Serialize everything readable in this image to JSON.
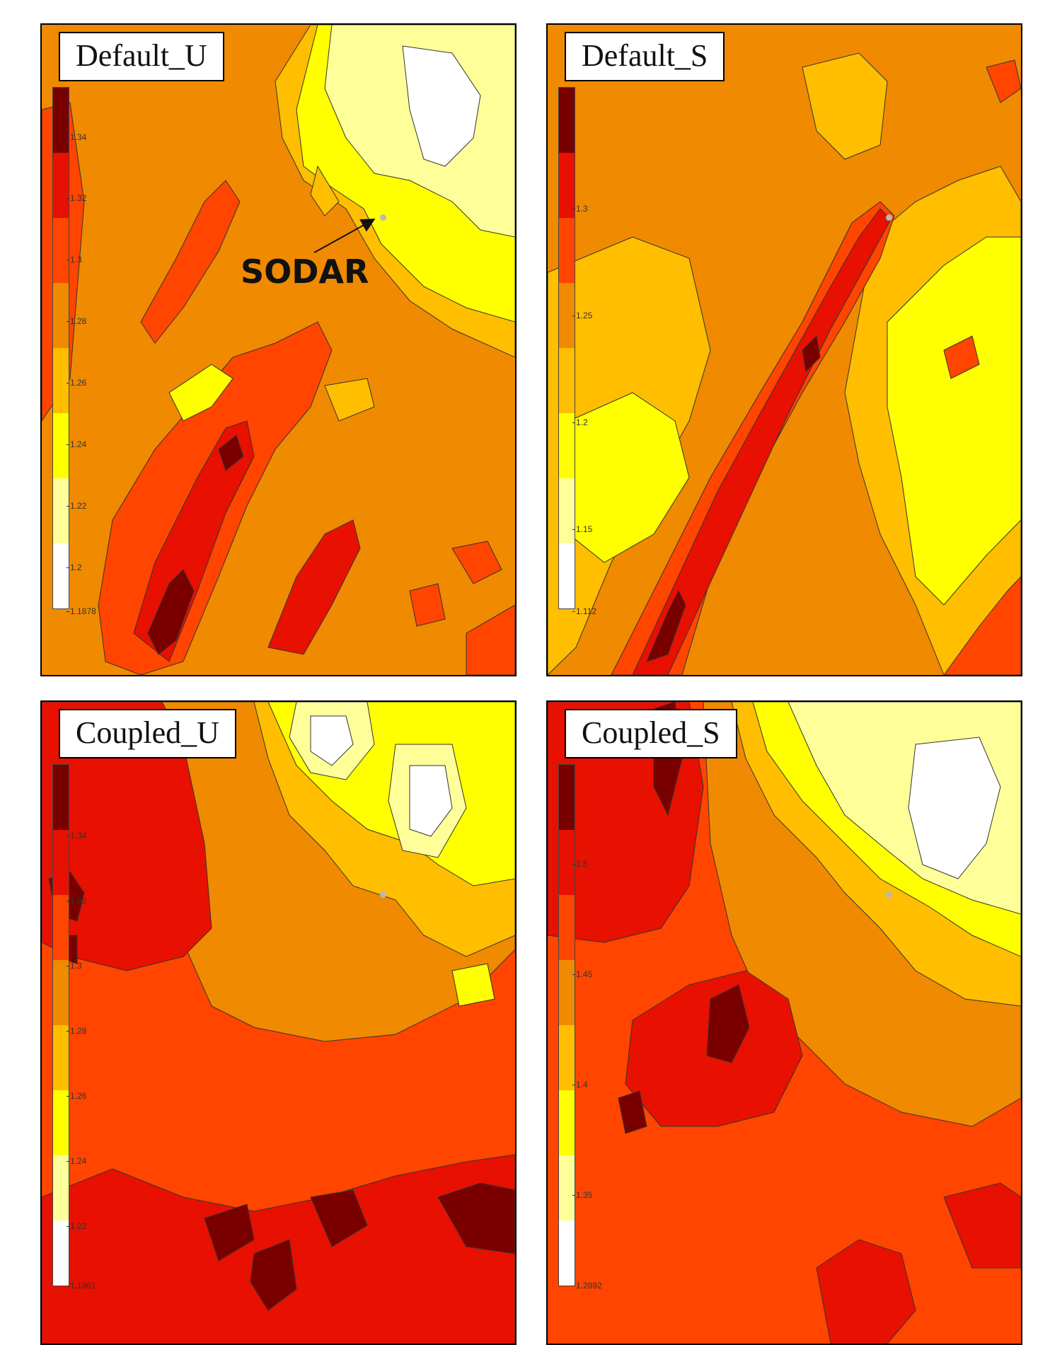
{
  "panels": [
    {
      "title": "Default_U",
      "ticks": [
        "1.34",
        "1.32",
        "1.3",
        "1.28",
        "1.26",
        "1.24",
        "1.22",
        "1.2",
        "1.1878"
      ],
      "sodar_label": "SODAR"
    },
    {
      "title": "Default_S",
      "ticks": [
        "1.3",
        "1.25",
        "1.2",
        "1.15",
        "1.112"
      ]
    },
    {
      "title": "Coupled_U",
      "ticks": [
        "1.34",
        "1.32",
        "1.3",
        "1.28",
        "1.26",
        "1.24",
        "1.22",
        "1.1961"
      ]
    },
    {
      "title": "Coupled_S",
      "ticks": [
        "1.5",
        "1.45",
        "1.4",
        "1.35",
        "1.2892"
      ]
    }
  ],
  "colors": {
    "level_0": "#ffffff",
    "level_1": "#ffff99",
    "level_2": "#ffff00",
    "level_3": "#ffbe00",
    "level_4": "#f08a00",
    "level_5": "#ff4500",
    "level_6": "#e81000",
    "level_7": "#7a0000",
    "sodar_marker": "#b8b8b8"
  }
}
